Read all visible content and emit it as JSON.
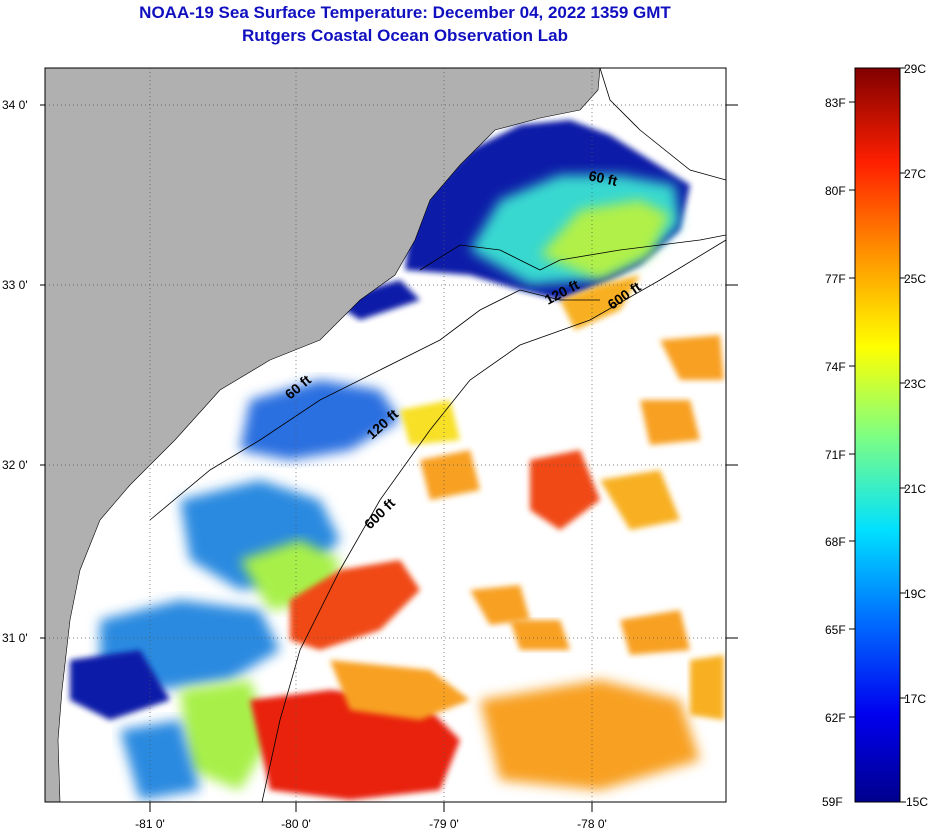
{
  "header": {
    "title": "NOAA-19 Sea Surface Temperature:  December 04, 2022 1359 GMT",
    "subtitle": "Rutgers Coastal Ocean Observation Lab"
  },
  "map": {
    "lat_ticks": [
      "34 0'",
      "33 0'",
      "32 0'",
      "31 0'"
    ],
    "lon_ticks": [
      "-81 0'",
      "-80 0'",
      "-79 0'",
      "-78 0'"
    ],
    "contour_labels": [
      "60 ft",
      "120 ft",
      "600 ft",
      "60 ft",
      "120 ft",
      "600 ft"
    ],
    "colors": {
      "land": "#b0b0b0",
      "cloud": "#ffffff",
      "cold": "#0a1aa8",
      "cool": "#2a8ae0",
      "mild": "#38e0c0",
      "green": "#a8f048",
      "yellow": "#f8e028",
      "warm": "#f8a020",
      "hot": "#f04818",
      "red": "#e82010"
    }
  },
  "colorbar": {
    "celsius_labels": [
      "29C",
      "27C",
      "25C",
      "23C",
      "21C",
      "19C",
      "17C",
      "15C"
    ],
    "fahrenheit_labels": [
      "83F",
      "80F",
      "77F",
      "74F",
      "71F",
      "68F",
      "65F",
      "62F",
      "59F"
    ],
    "range_c": [
      15,
      29
    ]
  }
}
